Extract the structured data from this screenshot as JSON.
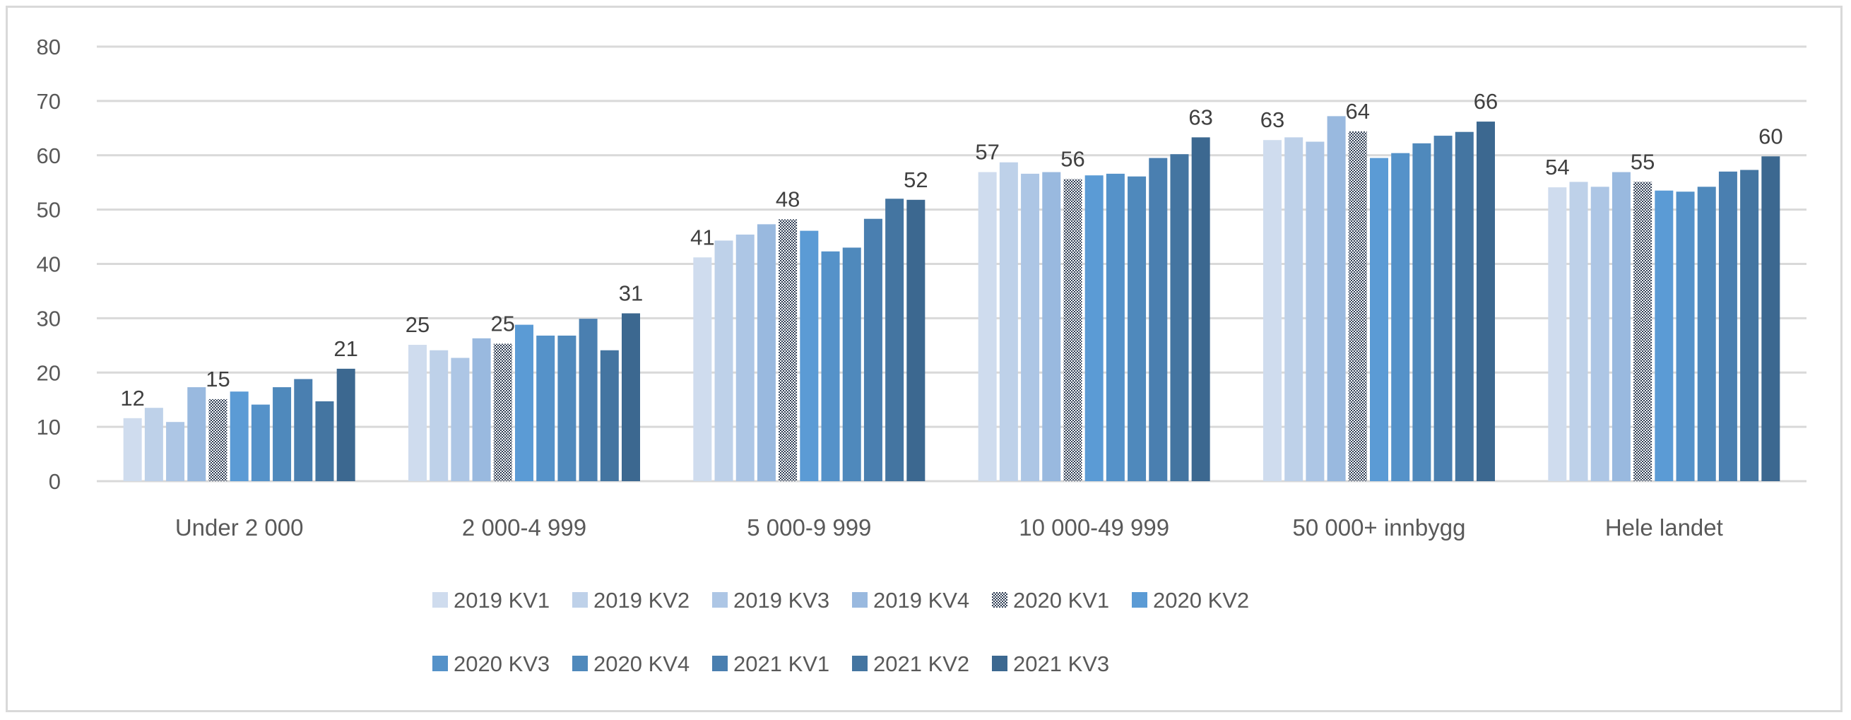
{
  "chart_data": {
    "type": "bar",
    "title": "",
    "xlabel": "",
    "ylabel": "",
    "ylim": [
      0,
      80
    ],
    "yticks": [
      0,
      10,
      20,
      30,
      40,
      50,
      60,
      70,
      80
    ],
    "grid": true,
    "legend_position": "bottom",
    "categories": [
      "Under 2 000",
      "2 000-4 999",
      "5 000-9 999",
      "10 000-49 999",
      "50 000+ innbygg",
      "Hele landet"
    ],
    "labeled_series": [
      0,
      4,
      10
    ],
    "series": [
      {
        "name": "2019 KV1",
        "color": "#cfdcee",
        "values": [
          11.6,
          25.1,
          41.2,
          56.9,
          62.8,
          54.1
        ]
      },
      {
        "name": "2019 KV2",
        "color": "#bed1e9",
        "values": [
          13.5,
          24.1,
          44.3,
          58.7,
          63.3,
          55.1
        ]
      },
      {
        "name": "2019 KV3",
        "color": "#adc6e5",
        "values": [
          10.9,
          22.7,
          45.4,
          56.6,
          62.5,
          54.2
        ]
      },
      {
        "name": "2019 KV4",
        "color": "#99b9df",
        "values": [
          17.3,
          26.3,
          47.3,
          56.9,
          67.2,
          56.9
        ]
      },
      {
        "name": "2020 KV1",
        "color": "pattern",
        "values": [
          15.1,
          25.3,
          48.2,
          55.6,
          64.4,
          55.1
        ]
      },
      {
        "name": "2020 KV2",
        "color": "#5b9bd5",
        "values": [
          16.5,
          28.8,
          46.1,
          56.3,
          59.5,
          53.5
        ]
      },
      {
        "name": "2020 KV3",
        "color": "#5592c9",
        "values": [
          14.1,
          26.8,
          42.3,
          56.6,
          60.4,
          53.3
        ]
      },
      {
        "name": "2020 KV4",
        "color": "#4f89bc",
        "values": [
          17.3,
          26.8,
          43.0,
          56.1,
          62.2,
          54.2
        ]
      },
      {
        "name": "2021 KV1",
        "color": "#4a7fb0",
        "values": [
          18.8,
          29.9,
          48.3,
          59.5,
          63.6,
          57.0
        ]
      },
      {
        "name": "2021 KV2",
        "color": "#4475a1",
        "values": [
          14.7,
          24.1,
          52.0,
          60.2,
          64.3,
          57.3
        ]
      },
      {
        "name": "2021 KV3",
        "color": "#3c6890",
        "values": [
          20.7,
          30.9,
          51.8,
          63.3,
          66.2,
          59.8
        ]
      }
    ]
  }
}
